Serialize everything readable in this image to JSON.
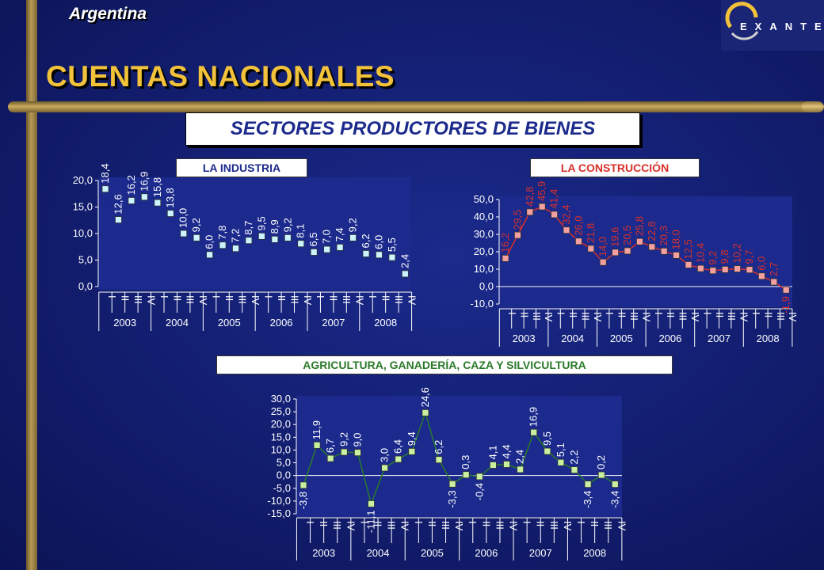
{
  "header": {
    "country": "Argentina",
    "title": "CUENTAS NACIONALES",
    "section": "SECTORES PRODUCTORES DE BIENES",
    "logo_text": "EXANTE"
  },
  "colors": {
    "accent": "#f2c23a",
    "industry": "#1b2a8c",
    "construction": "#d9302a",
    "agriculture": "#2a7a2a",
    "marker_industry": "#ccf4ff",
    "marker_construction": "#f4a0a0",
    "marker_agriculture": "#c8f0a0"
  },
  "chart_data": [
    {
      "type": "line",
      "title": "LA INDUSTRIA",
      "quarters": [
        "I",
        "II",
        "III",
        "IV"
      ],
      "years": [
        "2003",
        "2004",
        "2005",
        "2006",
        "2007",
        "2008"
      ],
      "values": [
        18.4,
        12.6,
        16.2,
        16.9,
        15.8,
        13.8,
        10.0,
        9.2,
        6.0,
        7.8,
        7.2,
        8.7,
        9.5,
        8.9,
        9.2,
        8.1,
        6.5,
        7.0,
        7.4,
        9.2,
        6.2,
        6.0,
        5.5,
        2.4
      ],
      "labels": [
        "18,4",
        "12,6",
        "16,2",
        "16,9",
        "15,8",
        "13,8",
        "10,0",
        "9,2",
        "6,0",
        "7,8",
        "7,2",
        "8,7",
        "9,5",
        "8,9",
        "9,2",
        "8,1",
        "6,5",
        "7,0",
        "7,4",
        "9,2",
        "6,2",
        "6,0",
        "5,5",
        "2,4"
      ],
      "yticks": [
        "0,0",
        "5,0",
        "10,0",
        "15,0",
        "20,0"
      ],
      "ylim": [
        0,
        20
      ]
    },
    {
      "type": "line",
      "title": "LA CONSTRUCCIÓN",
      "quarters": [
        "I",
        "II",
        "III",
        "IV"
      ],
      "years": [
        "2003",
        "2004",
        "2005",
        "2006",
        "2007",
        "2008"
      ],
      "values": [
        16.2,
        29.5,
        42.8,
        45.9,
        41.4,
        32.4,
        26.0,
        21.8,
        14.0,
        19.6,
        20.5,
        25.8,
        22.8,
        20.3,
        18.0,
        12.5,
        10.4,
        9.2,
        9.8,
        10.2,
        9.7,
        6.0,
        2.7,
        -1.9
      ],
      "labels": [
        "16,2",
        "29,5",
        "42,8",
        "45,9",
        "41,4",
        "32,4",
        "26,0",
        "21,8",
        "14,0",
        "19,6",
        "20,5",
        "25,8",
        "22,8",
        "20,3",
        "18,0",
        "12,5",
        "10,4",
        "9,2",
        "9,8",
        "10,2",
        "9,7",
        "6,0",
        "2,7",
        "-1,9"
      ],
      "yticks": [
        "-10,0",
        "0,0",
        "10,0",
        "20,0",
        "30,0",
        "40,0",
        "50,0"
      ],
      "ylim": [
        -10,
        50
      ]
    },
    {
      "type": "line",
      "title": "AGRICULTURA, GANADERÍA, CAZA Y SILVICULTURA",
      "quarters": [
        "I",
        "II",
        "III",
        "IV"
      ],
      "years": [
        "2003",
        "2004",
        "2005",
        "2006",
        "2007",
        "2008"
      ],
      "values": [
        -3.8,
        11.9,
        6.7,
        9.2,
        9.0,
        -11.1,
        3.0,
        6.4,
        9.4,
        24.6,
        6.2,
        -3.3,
        0.3,
        -0.4,
        4.1,
        4.4,
        2.4,
        16.9,
        9.5,
        5.1,
        2.2,
        -3.4,
        0.2,
        -3.4
      ],
      "labels": [
        "-3,8",
        "11,9",
        "6,7",
        "9,2",
        "9,0",
        "-11,1",
        "3,0",
        "6,4",
        "9,4",
        "24,6",
        "6,2",
        "-3,3",
        "0,3",
        "-0,4",
        "4,1",
        "4,4",
        "2,4",
        "16,9",
        "9,5",
        "5,1",
        "2,2",
        "-3,4",
        "0,2",
        "-3,4"
      ],
      "yticks": [
        "-15,0",
        "-10,0",
        "-5,0",
        "0,0",
        "5,0",
        "10,0",
        "15,0",
        "20,0",
        "25,0",
        "30,0"
      ],
      "ylim": [
        -15,
        30
      ]
    }
  ]
}
